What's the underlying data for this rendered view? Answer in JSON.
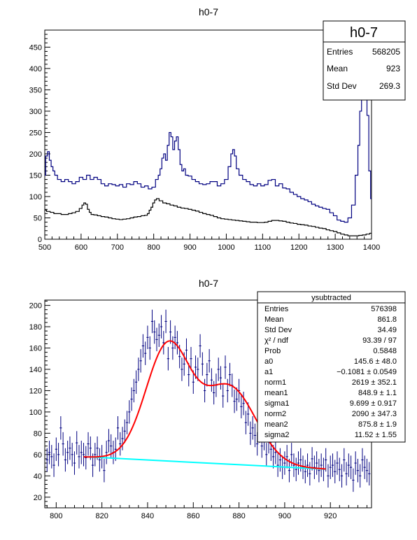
{
  "chart_data": [
    {
      "type": "line",
      "title": "h0-7",
      "xlim": [
        500,
        1400
      ],
      "ylim": [
        0,
        490
      ],
      "x_ticks": [
        "500",
        "600",
        "700",
        "800",
        "900",
        "1000",
        "1100",
        "1200",
        "1300",
        "1400"
      ],
      "y_ticks": [
        "0",
        "50",
        "100",
        "150",
        "200",
        "250",
        "300",
        "350",
        "400",
        "450"
      ],
      "grid": false,
      "stats_box": {
        "title": "h0-7",
        "rows": [
          {
            "label": "Entries",
            "value": "568205"
          },
          {
            "label": "Mean",
            "value": "923"
          },
          {
            "label": "Std Dev",
            "value": "269.3"
          }
        ]
      },
      "series": [
        {
          "color": "#000080",
          "x": [
            500,
            505,
            510,
            515,
            520,
            525,
            530,
            540,
            550,
            560,
            570,
            580,
            590,
            600,
            610,
            620,
            630,
            640,
            650,
            660,
            670,
            680,
            690,
            700,
            710,
            720,
            730,
            740,
            750,
            760,
            770,
            780,
            790,
            800,
            810,
            815,
            820,
            825,
            830,
            835,
            840,
            845,
            850,
            855,
            860,
            865,
            870,
            875,
            880,
            885,
            890,
            900,
            910,
            920,
            930,
            940,
            950,
            960,
            970,
            980,
            990,
            1000,
            1010,
            1015,
            1020,
            1025,
            1030,
            1040,
            1050,
            1060,
            1070,
            1080,
            1090,
            1100,
            1110,
            1120,
            1130,
            1140,
            1150,
            1160,
            1170,
            1180,
            1190,
            1200,
            1210,
            1220,
            1230,
            1240,
            1250,
            1260,
            1270,
            1280,
            1290,
            1300,
            1310,
            1320,
            1330,
            1340,
            1350,
            1360,
            1365,
            1370,
            1375,
            1380,
            1385,
            1390,
            1395,
            1400
          ],
          "y": [
            150,
            195,
            205,
            185,
            170,
            160,
            150,
            140,
            135,
            140,
            135,
            130,
            135,
            145,
            140,
            150,
            140,
            145,
            140,
            130,
            125,
            130,
            128,
            125,
            128,
            122,
            130,
            128,
            135,
            130,
            122,
            125,
            118,
            122,
            140,
            150,
            165,
            190,
            200,
            185,
            220,
            250,
            240,
            210,
            230,
            240,
            210,
            175,
            160,
            165,
            150,
            148,
            140,
            135,
            130,
            128,
            130,
            135,
            135,
            125,
            130,
            140,
            170,
            200,
            210,
            195,
            165,
            150,
            140,
            135,
            128,
            125,
            130,
            125,
            128,
            138,
            140,
            125,
            130,
            120,
            118,
            110,
            105,
            100,
            95,
            92,
            88,
            82,
            78,
            75,
            72,
            70,
            62,
            55,
            45,
            42,
            40,
            50,
            80,
            150,
            220,
            300,
            380,
            440,
            400,
            290,
            160,
            95
          ]
        },
        {
          "color": "#000000",
          "x": [
            500,
            510,
            520,
            530,
            540,
            550,
            560,
            570,
            580,
            590,
            600,
            605,
            610,
            615,
            620,
            625,
            630,
            640,
            650,
            660,
            670,
            680,
            690,
            700,
            710,
            720,
            730,
            740,
            750,
            760,
            770,
            780,
            785,
            790,
            795,
            800,
            805,
            810,
            820,
            830,
            840,
            850,
            860,
            870,
            880,
            890,
            900,
            910,
            920,
            930,
            940,
            950,
            960,
            970,
            980,
            990,
            1000,
            1010,
            1020,
            1030,
            1040,
            1050,
            1060,
            1070,
            1080,
            1090,
            1100,
            1110,
            1120,
            1130,
            1140,
            1150,
            1160,
            1170,
            1180,
            1190,
            1200,
            1210,
            1220,
            1230,
            1240,
            1250,
            1260,
            1270,
            1280,
            1290,
            1300,
            1310,
            1320,
            1330,
            1340,
            1350,
            1360,
            1370,
            1380,
            1390,
            1400
          ],
          "y": [
            68,
            65,
            63,
            60,
            60,
            58,
            58,
            60,
            62,
            65,
            72,
            80,
            85,
            82,
            70,
            63,
            58,
            57,
            55,
            53,
            52,
            50,
            48,
            47,
            46,
            47,
            48,
            50,
            52,
            53,
            55,
            56,
            60,
            68,
            75,
            85,
            92,
            95,
            90,
            85,
            83,
            80,
            78,
            75,
            73,
            72,
            70,
            68,
            66,
            63,
            60,
            58,
            56,
            53,
            50,
            48,
            47,
            46,
            45,
            44,
            43,
            42,
            41,
            40,
            40,
            39,
            39,
            40,
            42,
            44,
            44,
            43,
            42,
            40,
            38,
            37,
            35,
            34,
            33,
            31,
            30,
            28,
            26,
            25,
            22,
            20,
            18,
            15,
            12,
            10,
            8,
            8,
            8,
            9,
            10,
            12,
            14
          ]
        }
      ]
    },
    {
      "type": "scatter",
      "title": "h0-7",
      "xlim": [
        795,
        938
      ],
      "ylim": [
        10,
        205
      ],
      "x_ticks": [
        "800",
        "820",
        "840",
        "860",
        "880",
        "900",
        "920"
      ],
      "y_ticks": [
        "20",
        "40",
        "60",
        "80",
        "100",
        "120",
        "140",
        "160",
        "180",
        "200"
      ],
      "grid": false,
      "stats_box": {
        "title": "ysubtracted",
        "rows": [
          {
            "label": "Entries",
            "value": "576398"
          },
          {
            "label": "Mean",
            "value": "861.8"
          },
          {
            "label": "Std Dev",
            "value": "34.49"
          },
          {
            "label": "χ² / ndf",
            "value": "93.39 / 97"
          },
          {
            "label": "Prob",
            "value": "0.5848"
          },
          {
            "label": "a0",
            "value": "145.6 ± 48.0"
          },
          {
            "label": "a1",
            "value": "−0.1081 ± 0.0549"
          },
          {
            "label": "norm1",
            "value": "2619 ± 352.1"
          },
          {
            "label": "mean1",
            "value": "848.9 ± 1.1"
          },
          {
            "label": "sigma1",
            "value": "9.699 ± 0.917"
          },
          {
            "label": "norm2",
            "value": "2090 ± 347.3"
          },
          {
            "label": "mean2",
            "value": "875.8 ± 1.9"
          },
          {
            "label": "sigma2",
            "value": "11.52 ± 1.55"
          }
        ]
      },
      "points": {
        "x": [
          796,
          797,
          798,
          799,
          800,
          801,
          802,
          803,
          804,
          805,
          806,
          807,
          808,
          809,
          810,
          811,
          812,
          813,
          814,
          815,
          816,
          817,
          818,
          819,
          820,
          821,
          822,
          823,
          824,
          825,
          826,
          827,
          828,
          829,
          830,
          831,
          832,
          833,
          834,
          835,
          836,
          837,
          838,
          839,
          840,
          841,
          842,
          843,
          844,
          845,
          846,
          847,
          848,
          849,
          850,
          851,
          852,
          853,
          854,
          855,
          856,
          857,
          858,
          859,
          860,
          861,
          862,
          863,
          864,
          865,
          866,
          867,
          868,
          869,
          870,
          871,
          872,
          873,
          874,
          875,
          876,
          877,
          878,
          879,
          880,
          881,
          882,
          883,
          884,
          885,
          886,
          887,
          888,
          889,
          890,
          891,
          892,
          893,
          894,
          895,
          896,
          897,
          898,
          899,
          900,
          901,
          902,
          903,
          904,
          905,
          906,
          907,
          908,
          909,
          910,
          911,
          912,
          913,
          914,
          915,
          916,
          917,
          918,
          919,
          920,
          921,
          922,
          923,
          924,
          925,
          926,
          927,
          928,
          929,
          930,
          931,
          932,
          933,
          934,
          935,
          936,
          937
        ],
        "y": [
          55,
          62,
          58,
          50,
          65,
          60,
          85,
          70,
          55,
          62,
          66,
          60,
          52,
          71,
          58,
          62,
          60,
          57,
          70,
          66,
          50,
          60,
          66,
          55,
          58,
          45,
          62,
          73,
          68,
          62,
          65,
          85,
          70,
          75,
          82,
          90,
          100,
          112,
          120,
          128,
          140,
          148,
          162,
          155,
          170,
          160,
          185,
          175,
          168,
          172,
          180,
          165,
          185,
          150,
          175,
          160,
          170,
          165,
          152,
          140,
          145,
          158,
          135,
          150,
          128,
          142,
          140,
          162,
          145,
          120,
          135,
          148,
          130,
          118,
          125,
          140,
          132,
          115,
          142,
          120,
          135,
          125,
          110,
          112,
          120,
          105,
          108,
          90,
          98,
          80,
          85,
          78,
          70,
          82,
          68,
          75,
          60,
          72,
          65,
          58,
          62,
          50,
          55,
          48,
          52,
          58,
          45,
          60,
          50,
          46,
          52,
          55,
          48,
          44,
          50,
          42,
          56,
          48,
          52,
          45,
          50,
          46,
          55,
          40,
          48,
          50,
          44,
          52,
          46,
          40,
          55,
          42,
          50,
          48,
          36,
          52,
          45,
          40,
          55,
          48,
          45,
          42
        ],
        "yerr": 11
      },
      "fit_curve_color": "#ff0000",
      "background_line_color": "#00ffff",
      "background_line": {
        "x": [
          812,
          918
        ],
        "y": [
          58.0,
          46.3
        ]
      },
      "fit_params": {
        "a0": 145.6,
        "a1": -0.1081,
        "norm1": 2619,
        "mean1": 848.9,
        "sigma1": 9.699,
        "norm2": 2090,
        "mean2": 875.8,
        "sigma2": 11.52
      },
      "fit_range": [
        812,
        918
      ]
    }
  ]
}
